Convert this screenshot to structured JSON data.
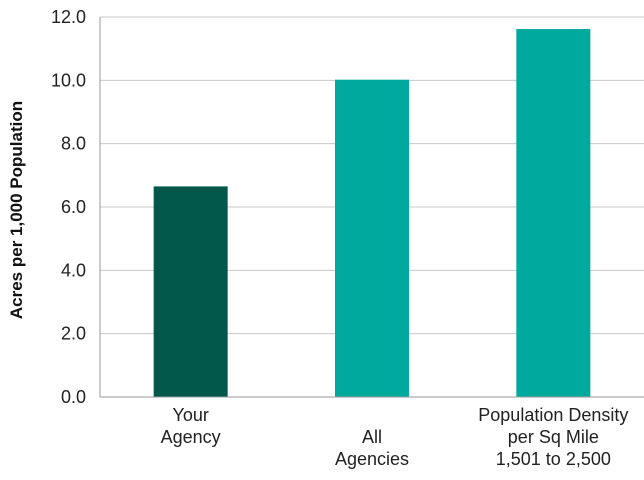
{
  "chart_data": {
    "type": "bar",
    "title": "",
    "xlabel": "",
    "ylabel": "Acres per 1,000 Population",
    "ylim": [
      0,
      12
    ],
    "y_ticks": [
      0,
      2,
      4,
      6,
      8,
      10,
      12
    ],
    "y_tick_labels": [
      "0.0",
      "2.0",
      "4.0",
      "6.0",
      "8.0",
      "10.0",
      "12.0"
    ],
    "grid": true,
    "categories": [
      [
        "Your",
        "Agency"
      ],
      [
        "All",
        "Agencies"
      ],
      [
        "Population Density",
        "per Sq Mile",
        "1,501 to 2,500"
      ]
    ],
    "values": [
      6.65,
      10.02,
      11.62
    ],
    "bar_colors": [
      "#00574a",
      "#00a99d",
      "#00a99d"
    ],
    "grid_color": "#c8c8c8",
    "axis_color": "#9a9a9a"
  }
}
